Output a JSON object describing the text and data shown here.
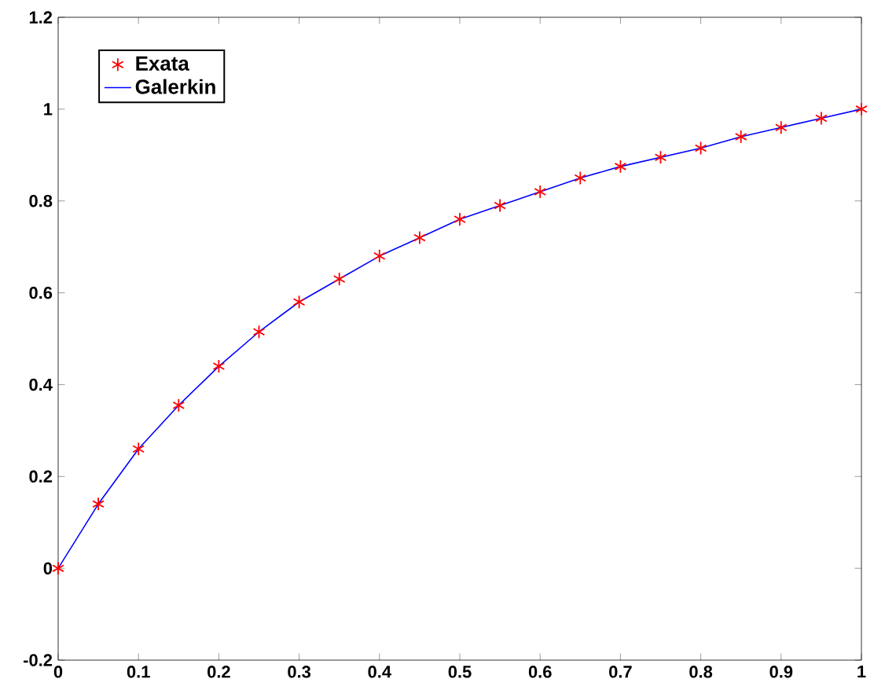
{
  "chart_data": {
    "type": "line",
    "x": [
      0,
      0.05,
      0.1,
      0.15,
      0.2,
      0.25,
      0.3,
      0.35,
      0.4,
      0.45,
      0.5,
      0.55,
      0.6,
      0.65,
      0.7,
      0.75,
      0.8,
      0.85,
      0.9,
      0.95,
      1
    ],
    "series": [
      {
        "name": "Exata",
        "type": "scatter",
        "marker": "cross",
        "color": "#ff0000",
        "values": [
          0,
          0.14,
          0.26,
          0.355,
          0.44,
          0.515,
          0.58,
          0.63,
          0.68,
          0.72,
          0.76,
          0.79,
          0.82,
          0.85,
          0.875,
          0.895,
          0.915,
          0.94,
          0.96,
          0.98,
          1.0
        ]
      },
      {
        "name": "Galerkin",
        "color": "#0000ff",
        "values": [
          0,
          0.14,
          0.26,
          0.355,
          0.44,
          0.515,
          0.58,
          0.63,
          0.68,
          0.72,
          0.76,
          0.79,
          0.82,
          0.85,
          0.875,
          0.895,
          0.915,
          0.94,
          0.96,
          0.98,
          1.0
        ]
      }
    ],
    "xlim": [
      0,
      1
    ],
    "ylim": [
      -0.2,
      1.2
    ],
    "xticks": [
      0,
      0.1,
      0.2,
      0.3,
      0.4,
      0.5,
      0.6,
      0.7,
      0.8,
      0.9,
      1
    ],
    "yticks": [
      -0.2,
      0,
      0.2,
      0.4,
      0.6,
      0.8,
      1,
      1.2
    ],
    "grid": false,
    "legend": "top left"
  }
}
